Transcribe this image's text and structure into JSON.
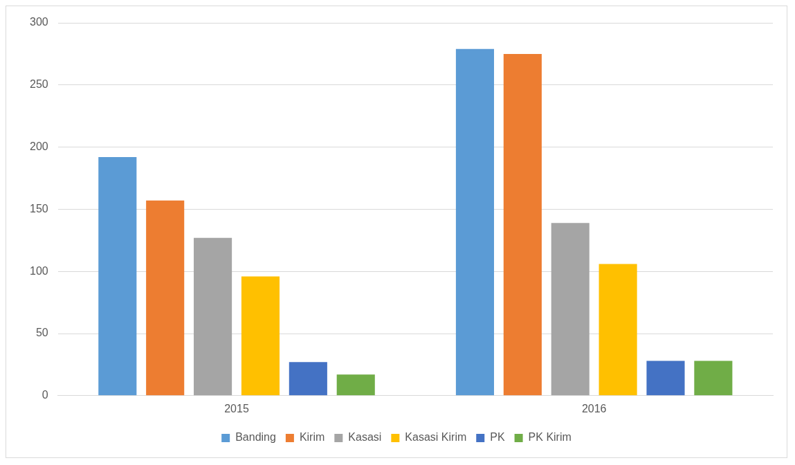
{
  "chart_data": {
    "type": "bar",
    "categories": [
      "2015",
      "2016"
    ],
    "series": [
      {
        "name": "Banding",
        "color": "#5b9bd5",
        "values": [
          192,
          279
        ]
      },
      {
        "name": "Kirim",
        "color": "#ed7d31",
        "values": [
          157,
          275
        ]
      },
      {
        "name": "Kasasi",
        "color": "#a5a5a5",
        "values": [
          127,
          139
        ]
      },
      {
        "name": "Kasasi Kirim",
        "color": "#ffc000",
        "values": [
          96,
          106
        ]
      },
      {
        "name": "PK",
        "color": "#4472c4",
        "values": [
          27,
          28
        ]
      },
      {
        "name": "PK Kirim",
        "color": "#70ad47",
        "values": [
          17,
          28
        ]
      }
    ],
    "ylim": [
      0,
      300
    ],
    "yticks": [
      0,
      50,
      100,
      150,
      200,
      250,
      300
    ],
    "grid": "y",
    "legend": "bottom"
  }
}
